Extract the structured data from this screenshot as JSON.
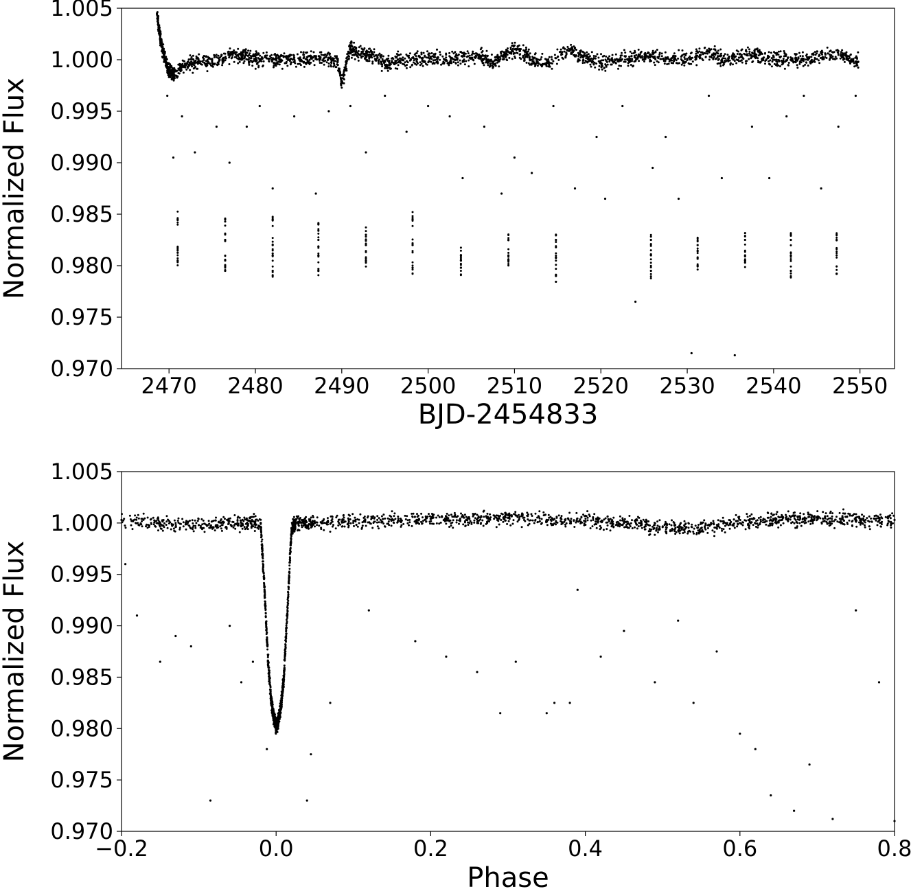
{
  "chart_data": [
    {
      "type": "scatter",
      "xlabel": "BJD-2454833",
      "ylabel": "Normalized Flux",
      "xlim": [
        2464.5,
        2554
      ],
      "ylim": [
        0.97,
        1.005
      ],
      "xticks": [
        2470,
        2480,
        2490,
        2500,
        2510,
        2520,
        2530,
        2540,
        2550
      ],
      "xtick_labels": [
        "2470",
        "2480",
        "2490",
        "2500",
        "2510",
        "2520",
        "2530",
        "2540",
        "2550"
      ],
      "yticks": [
        0.97,
        0.975,
        0.98,
        0.985,
        0.99,
        0.995,
        1.0,
        1.005
      ],
      "ytick_labels": [
        "0.970",
        "0.975",
        "0.980",
        "0.985",
        "0.990",
        "0.995",
        "1.000",
        "1.005"
      ],
      "grid": false,
      "marker_color": "#000000",
      "series": [
        {
          "x": [
            2468.6,
            2469.0,
            2469.4,
            2469.8,
            2470.2,
            2470.6,
            2471.5,
            2473.0,
            2475.0,
            2477.0,
            2478.5,
            2480.0,
            2482.0,
            2484.0,
            2486.0,
            2488.0,
            2489.5,
            2490.0,
            2491.0,
            2492.0,
            2493.5,
            2495.0,
            2496.5,
            2498.0,
            2500.0,
            2502.0,
            2504.0,
            2506.0,
            2507.5,
            2509.0,
            2510.5,
            2512.0,
            2514.0,
            2516.5,
            2518.0,
            2520.0,
            2522.0,
            2524.0,
            2526.0,
            2528.0,
            2530.0,
            2532.5,
            2534.0,
            2536.0,
            2538.0,
            2540.0,
            2542.0,
            2544.0,
            2546.0,
            2548.0,
            2549.8
          ],
          "y": [
            1.0045,
            1.002,
            1.0005,
            0.9993,
            0.9988,
            0.9985,
            0.9993,
            0.9997,
            0.9997,
            1.0005,
            1.0005,
            1.0,
            1.0,
            1.0,
            1.0,
            1.0002,
            0.9998,
            0.9978,
            1.0012,
            1.0005,
            1.0005,
            0.9995,
            1.0,
            1.0,
            1.0002,
            1.0,
            1.0003,
            1.0003,
            0.9997,
            1.0005,
            1.001,
            1.0,
            0.9997,
            1.001,
            1.0003,
            0.9997,
            1.0,
            1.0002,
            1.0003,
            1.0,
            1.0,
            1.0008,
            1.0,
            1.0002,
            1.0005,
            1.0,
            1.0,
            1.0,
            1.0005,
            1.0005,
            0.9998
          ]
        },
        {
          "x": [
            2471.0,
            2471.0,
            2471.0,
            2476.5,
            2476.5,
            2476.5,
            2476.5,
            2482.0,
            2482.0,
            2482.0,
            2482.0,
            2487.3,
            2487.3,
            2487.3,
            2487.3,
            2492.8,
            2492.8,
            2492.8,
            2498.2,
            2498.2,
            2498.2,
            2503.8,
            2503.8,
            2503.8,
            2509.3,
            2509.3,
            2509.3,
            2514.8,
            2514.8,
            2514.8,
            2525.8,
            2525.8,
            2525.8,
            2531.2,
            2531.2,
            2531.2,
            2536.7,
            2536.7,
            2536.7,
            2542.0,
            2542.0,
            2542.0,
            2547.3,
            2547.3,
            2547.3
          ],
          "y": [
            0.9845,
            0.9815,
            0.9805,
            0.9845,
            0.9825,
            0.9805,
            0.9795,
            0.9845,
            0.982,
            0.981,
            0.9795,
            0.984,
            0.9825,
            0.981,
            0.9795,
            0.983,
            0.982,
            0.9805,
            0.9845,
            0.982,
            0.9798,
            0.981,
            0.9805,
            0.9798,
            0.9825,
            0.981,
            0.9805,
            0.9825,
            0.9808,
            0.979,
            0.9825,
            0.981,
            0.9795,
            0.982,
            0.9808,
            0.98,
            0.9825,
            0.981,
            0.9803,
            0.9825,
            0.981,
            0.9795,
            0.9825,
            0.981,
            0.9792
          ]
        },
        {
          "x": [
            2469.8,
            2470.5,
            2471.5,
            2473.0,
            2475.5,
            2477.0,
            2479.0,
            2480.5,
            2482.0,
            2484.5,
            2487.0,
            2488.5,
            2491.0,
            2492.8,
            2495.0,
            2497.5,
            2500.0,
            2502.5,
            2504.0,
            2506.5,
            2508.5,
            2510.0,
            2512.0,
            2514.5,
            2517.0,
            2519.5,
            2520.5,
            2522.5,
            2524.0,
            2526.0,
            2527.5,
            2529.0,
            2530.5,
            2532.5,
            2534.0,
            2535.5,
            2537.5,
            2539.5,
            2541.5,
            2543.5,
            2545.5,
            2547.5,
            2549.5
          ],
          "y": [
            0.9965,
            0.9905,
            0.9945,
            0.991,
            0.9935,
            0.99,
            0.9935,
            0.9955,
            0.9875,
            0.9945,
            0.987,
            0.995,
            0.9955,
            0.991,
            0.9965,
            0.993,
            0.9955,
            0.9945,
            0.9885,
            0.9935,
            0.987,
            0.9905,
            0.989,
            0.9955,
            0.9875,
            0.9925,
            0.9865,
            0.9955,
            0.9765,
            0.9895,
            0.9925,
            0.9865,
            0.9715,
            0.9965,
            0.9885,
            0.9713,
            0.9935,
            0.9885,
            0.9945,
            0.9965,
            0.9875,
            0.9935,
            0.9965
          ]
        }
      ]
    },
    {
      "type": "scatter",
      "xlabel": "Phase",
      "ylabel": "Normalized Flux",
      "xlim": [
        -0.2,
        0.8
      ],
      "ylim": [
        0.97,
        1.005
      ],
      "xticks": [
        -0.2,
        0.0,
        0.2,
        0.4,
        0.6,
        0.8
      ],
      "xtick_labels": [
        "−0.2",
        "0.0",
        "0.2",
        "0.4",
        "0.6",
        "0.8"
      ],
      "yticks": [
        0.97,
        0.975,
        0.98,
        0.985,
        0.99,
        0.995,
        1.0,
        1.005
      ],
      "ytick_labels": [
        "0.970",
        "0.975",
        "0.980",
        "0.985",
        "0.990",
        "0.995",
        "1.000",
        "1.005"
      ],
      "grid": false,
      "marker_color": "#000000",
      "series": [
        {
          "x": [
            -0.2,
            -0.15,
            -0.1,
            -0.05,
            -0.02,
            -0.015,
            -0.01,
            -0.006,
            -0.003,
            0.0,
            0.003,
            0.006,
            0.01,
            0.015,
            0.02,
            0.025,
            0.05,
            0.1,
            0.15,
            0.2,
            0.25,
            0.3,
            0.35,
            0.4,
            0.45,
            0.5,
            0.55,
            0.6,
            0.65,
            0.7,
            0.75,
            0.8
          ],
          "y": [
            1.0003,
            1.0,
            0.9998,
            1.0,
            1.0,
            0.9935,
            0.986,
            0.9825,
            0.981,
            0.9803,
            0.9808,
            0.982,
            0.985,
            0.992,
            0.9995,
            1.0,
            1.0,
            1.0002,
            1.0003,
            1.0004,
            1.0004,
            1.0005,
            1.0003,
            1.0002,
            1.0,
            0.9996,
            0.9995,
            1.0,
            1.0002,
            1.0005,
            1.0003,
            1.0003
          ]
        },
        {
          "x": [
            -0.195,
            -0.18,
            -0.15,
            -0.13,
            -0.11,
            -0.085,
            -0.06,
            -0.045,
            -0.03,
            -0.012,
            0.04,
            0.045,
            0.07,
            0.12,
            0.18,
            0.22,
            0.26,
            0.29,
            0.31,
            0.35,
            0.36,
            0.38,
            0.39,
            0.42,
            0.45,
            0.49,
            0.52,
            0.54,
            0.57,
            0.6,
            0.62,
            0.64,
            0.67,
            0.69,
            0.72,
            0.75,
            0.78,
            0.8
          ],
          "y": [
            0.996,
            0.991,
            0.9865,
            0.989,
            0.988,
            0.973,
            0.99,
            0.9845,
            0.9865,
            0.978,
            0.973,
            0.9775,
            0.9825,
            0.9915,
            0.9885,
            0.987,
            0.9855,
            0.9815,
            0.9865,
            0.9815,
            0.9825,
            0.9825,
            0.9935,
            0.987,
            0.9895,
            0.9845,
            0.9905,
            0.9825,
            0.9875,
            0.9795,
            0.978,
            0.9735,
            0.972,
            0.9765,
            0.9712,
            0.9915,
            0.9845,
            0.971
          ]
        }
      ]
    }
  ]
}
